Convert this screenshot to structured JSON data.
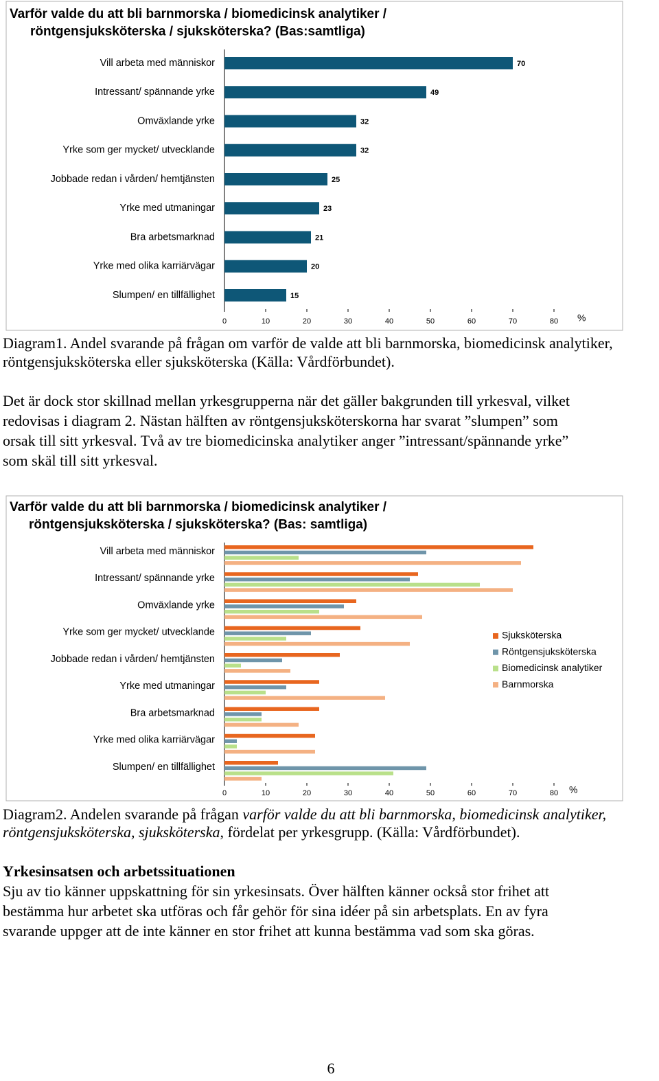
{
  "chart_data": [
    {
      "type": "bar",
      "orientation": "horizontal",
      "title": [
        "Varför valde du att bli barnmorska / biomedicinsk analytiker /",
        "röntgensjuksköterska / sjuksköterska? (Bas:samtliga)"
      ],
      "categories": [
        "Vill arbeta med människor",
        "Intressant/ spännande yrke",
        "Omväxlande yrke",
        "Yrke som ger mycket/ utvecklande",
        "Jobbade redan i vården/ hemtjänsten",
        "Yrke med utmaningar",
        "Bra arbetsmarknad",
        "Yrke med olika karriärvägar",
        "Slumpen/ en tillfällighet"
      ],
      "values": [
        70,
        49,
        32,
        32,
        25,
        23,
        21,
        20,
        15
      ],
      "color": "#0e5777",
      "xlim": [
        0,
        80
      ],
      "xticks": [
        0,
        10,
        20,
        30,
        40,
        50,
        60,
        70,
        80
      ],
      "x_unit": "%"
    },
    {
      "type": "grouped-bar",
      "orientation": "horizontal",
      "title": [
        "Varför valde du att bli barnmorska / biomedicinsk analytiker /",
        "röntgensjuksköterska / sjuksköterska? (Bas: samtliga)"
      ],
      "categories": [
        "Vill arbeta med människor",
        "Intressant/ spännande yrke",
        "Omväxlande yrke",
        "Yrke som ger mycket/ utvecklande",
        "Jobbade redan i vården/ hemtjänsten",
        "Yrke med utmaningar",
        "Bra arbetsmarknad",
        "Yrke med olika karriärvägar",
        "Slumpen/ en tillfällighet"
      ],
      "series": [
        {
          "name": "Sjuksköterska",
          "color": "#e8661f",
          "values": [
            75,
            47,
            32,
            33,
            28,
            23,
            23,
            22,
            13
          ]
        },
        {
          "name": "Röntgensjuksköterska",
          "color": "#6f95aa",
          "values": [
            49,
            45,
            29,
            21,
            14,
            15,
            9,
            3,
            49
          ]
        },
        {
          "name": "Biomedicinsk analytiker",
          "color": "#b9e08a",
          "values": [
            18,
            62,
            23,
            15,
            4,
            10,
            9,
            3,
            41
          ]
        },
        {
          "name": "Barnmorska",
          "color": "#f4b183",
          "values": [
            72,
            70,
            48,
            45,
            16,
            39,
            18,
            22,
            9
          ]
        }
      ],
      "xlim": [
        0,
        80
      ],
      "xticks": [
        0,
        10,
        20,
        30,
        40,
        50,
        60,
        70,
        80
      ],
      "x_unit": "%",
      "legend": "right"
    }
  ],
  "caption1": [
    "Diagram1. Andel svarande på frågan om varför de valde att bli barnmorska, biomedicinsk analytiker,",
    "röntgensjuksköterska eller sjuksköterska (Källa: Vårdförbundet)."
  ],
  "paragraph1": [
    "Det är dock stor skillnad mellan yrkesgrupperna när det gäller bakgrunden till yrkesval, vilket",
    "redovisas i diagram 2. Nästan hälften av röntgensjuksköterskorna har svarat ”slumpen” som",
    "orsak till sitt yrkesval. Två av tre biomedicinska analytiker anger ”intressant/spännande yrke”",
    "som skäl till sitt yrkesval."
  ],
  "caption2": [
    [
      {
        "text": "Diagram2. Andelen svarande på frågan ",
        "italic": false
      },
      {
        "text": "varför valde du att bli barnmorska, biomedicinsk analytiker,",
        "italic": true
      }
    ],
    [
      {
        "text": "röntgensjuksköterska, sjuksköterska",
        "italic": true
      },
      {
        "text": ", fördelat per yrkesgrupp. (Källa: Vårdförbundet).",
        "italic": false
      }
    ]
  ],
  "heading": "Yrkesinsatsen och arbetssituationen",
  "paragraph2": [
    "Sju av tio känner uppskattning för sin yrkesinsats. Över hälften känner också stor frihet att",
    "bestämma hur arbetet ska utföras och får gehör för sina idéer på sin arbetsplats. En av fyra",
    "svarande uppger att de inte känner en stor frihet att kunna bestämma vad som ska göras."
  ],
  "page_number": 6
}
